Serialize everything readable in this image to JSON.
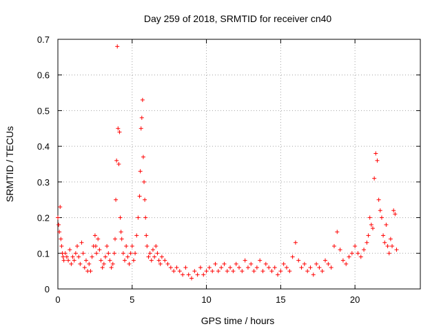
{
  "chart_data": {
    "type": "scatter",
    "title": "Day 259 of 2018, SRMTID for receiver cn40",
    "xlabel": "GPS time / hours",
    "ylabel": "SRMTID / TECUs",
    "xlim": [
      0,
      24.4
    ],
    "ylim": [
      0,
      0.7
    ],
    "xticks": [
      0,
      5,
      10,
      15,
      20
    ],
    "xtick_labels": [
      "0",
      "5",
      "10",
      "15",
      "20"
    ],
    "yticks": [
      0,
      0.1,
      0.2,
      0.3,
      0.4,
      0.5,
      0.6,
      0.7
    ],
    "ytick_labels": [
      "0",
      "0.1",
      "0.2",
      "0.3",
      "0.4",
      "0.5",
      "0.6",
      "0.7"
    ],
    "grid": true,
    "marker": "+",
    "color": "#ff0000",
    "series": [
      {
        "name": "SRMTID",
        "x": [
          0.0,
          0.05,
          0.1,
          0.15,
          0.2,
          0.25,
          0.3,
          0.35,
          0.4,
          0.5,
          0.6,
          0.7,
          0.8,
          0.9,
          1.0,
          1.1,
          1.2,
          1.3,
          1.4,
          1.5,
          1.6,
          1.7,
          1.8,
          1.9,
          2.0,
          2.1,
          2.2,
          2.3,
          2.4,
          2.5,
          2.55,
          2.6,
          2.7,
          2.8,
          2.9,
          3.0,
          3.1,
          3.2,
          3.3,
          3.4,
          3.5,
          3.6,
          3.7,
          3.8,
          3.85,
          3.9,
          3.95,
          4.0,
          4.05,
          4.1,
          4.15,
          4.2,
          4.25,
          4.3,
          4.4,
          4.5,
          4.6,
          4.7,
          4.8,
          4.9,
          5.0,
          5.1,
          5.2,
          5.3,
          5.4,
          5.5,
          5.55,
          5.6,
          5.65,
          5.7,
          5.75,
          5.8,
          5.85,
          5.9,
          5.95,
          6.0,
          6.1,
          6.2,
          6.3,
          6.4,
          6.5,
          6.6,
          6.7,
          6.8,
          6.9,
          7.0,
          7.2,
          7.4,
          7.6,
          7.8,
          8.0,
          8.2,
          8.4,
          8.6,
          8.8,
          9.0,
          9.2,
          9.4,
          9.6,
          9.8,
          10.0,
          10.2,
          10.4,
          10.6,
          10.8,
          11.0,
          11.2,
          11.4,
          11.6,
          11.8,
          12.0,
          12.2,
          12.4,
          12.6,
          12.8,
          13.0,
          13.2,
          13.4,
          13.6,
          13.8,
          14.0,
          14.2,
          14.4,
          14.6,
          14.8,
          15.0,
          15.2,
          15.4,
          15.6,
          15.8,
          16.0,
          16.2,
          16.4,
          16.6,
          16.8,
          17.0,
          17.2,
          17.4,
          17.6,
          17.8,
          18.0,
          18.2,
          18.4,
          18.6,
          18.8,
          19.0,
          19.2,
          19.4,
          19.6,
          19.8,
          20.0,
          20.2,
          20.4,
          20.6,
          20.8,
          20.9,
          21.0,
          21.1,
          21.2,
          21.3,
          21.4,
          21.5,
          21.6,
          21.7,
          21.8,
          21.9,
          22.0,
          22.1,
          22.2,
          22.3,
          22.4,
          22.5,
          22.6,
          22.7,
          22.8
        ],
        "y": [
          0.2,
          0.18,
          0.16,
          0.23,
          0.14,
          0.12,
          0.1,
          0.09,
          0.08,
          0.1,
          0.09,
          0.08,
          0.11,
          0.07,
          0.09,
          0.08,
          0.1,
          0.12,
          0.09,
          0.07,
          0.13,
          0.1,
          0.06,
          0.08,
          0.05,
          0.07,
          0.05,
          0.09,
          0.12,
          0.15,
          0.12,
          0.1,
          0.14,
          0.11,
          0.08,
          0.06,
          0.07,
          0.09,
          0.12,
          0.1,
          0.08,
          0.06,
          0.07,
          0.1,
          0.14,
          0.25,
          0.36,
          0.68,
          0.45,
          0.35,
          0.44,
          0.2,
          0.16,
          0.14,
          0.1,
          0.08,
          0.12,
          0.09,
          0.07,
          0.1,
          0.12,
          0.08,
          0.1,
          0.15,
          0.2,
          0.26,
          0.33,
          0.45,
          0.48,
          0.53,
          0.37,
          0.3,
          0.25,
          0.2,
          0.15,
          0.12,
          0.09,
          0.1,
          0.08,
          0.11,
          0.09,
          0.12,
          0.1,
          0.08,
          0.07,
          0.09,
          0.08,
          0.07,
          0.06,
          0.05,
          0.06,
          0.05,
          0.04,
          0.06,
          0.04,
          0.03,
          0.05,
          0.04,
          0.06,
          0.04,
          0.05,
          0.06,
          0.05,
          0.07,
          0.05,
          0.06,
          0.07,
          0.05,
          0.06,
          0.05,
          0.07,
          0.06,
          0.05,
          0.08,
          0.06,
          0.07,
          0.05,
          0.06,
          0.08,
          0.05,
          0.07,
          0.06,
          0.05,
          0.06,
          0.04,
          0.05,
          0.07,
          0.06,
          0.05,
          0.09,
          0.13,
          0.08,
          0.06,
          0.07,
          0.05,
          0.06,
          0.04,
          0.07,
          0.06,
          0.05,
          0.08,
          0.07,
          0.06,
          0.12,
          0.16,
          0.11,
          0.08,
          0.07,
          0.09,
          0.1,
          0.12,
          0.1,
          0.09,
          0.11,
          0.13,
          0.15,
          0.2,
          0.18,
          0.17,
          0.31,
          0.38,
          0.36,
          0.25,
          0.22,
          0.2,
          0.15,
          0.13,
          0.18,
          0.12,
          0.1,
          0.14,
          0.12,
          0.22,
          0.21,
          0.11
        ]
      }
    ]
  }
}
